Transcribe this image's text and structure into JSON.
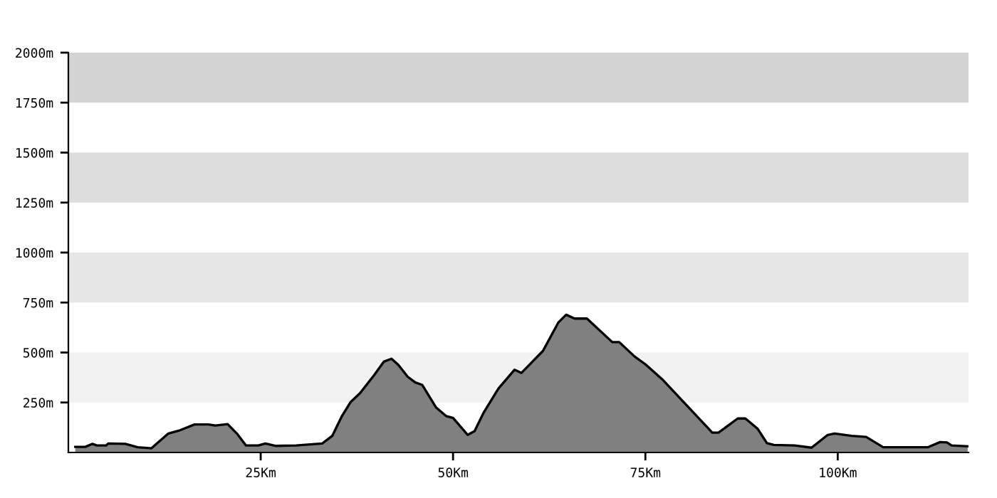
{
  "chart_data": {
    "type": "area",
    "x": [
      0.9,
      2.2,
      3.1,
      3.7,
      4.9,
      5.2,
      7.4,
      9.0,
      10.8,
      13.0,
      14.5,
      16.4,
      18.2,
      19.1,
      20.7,
      21.9,
      23.1,
      24.7,
      25.6,
      26.9,
      29.6,
      33.0,
      34.3,
      35.5,
      36.7,
      37.9,
      39.8,
      41.0,
      42.0,
      42.9,
      44.1,
      45.1,
      46.0,
      47.8,
      49.1,
      50.0,
      51.9,
      52.8,
      54.0,
      55.9,
      58.0,
      58.9,
      61.7,
      63.7,
      64.7,
      65.8,
      67.4,
      70.7,
      71.6,
      73.6,
      75.1,
      77.3,
      83.7,
      84.5,
      87.0,
      88.0,
      89.6,
      90.8,
      91.7,
      94.4,
      96.6,
      98.7,
      99.6,
      101.8,
      103.7,
      105.9,
      111.7,
      113.3,
      114.2,
      114.8,
      116.9
    ],
    "series": [
      {
        "color": "#808080",
        "values": [
          28,
          28,
          43,
          35,
          35,
          45,
          43,
          26,
          21,
          95,
          111,
          140,
          140,
          135,
          142,
          95,
          35,
          35,
          45,
          33,
          35,
          45,
          83,
          178,
          253,
          296,
          390,
          454,
          469,
          438,
          379,
          350,
          338,
          225,
          182,
          173,
          88,
          107,
          201,
          320,
          414,
          398,
          509,
          651,
          689,
          670,
          670,
          552,
          552,
          480,
          438,
          362,
          99,
          99,
          170,
          170,
          118,
          47,
          38,
          35,
          24,
          88,
          95,
          83,
          78,
          26,
          26,
          52,
          50,
          35,
          31
        ]
      }
    ],
    "xlim": [
      0,
      117
    ],
    "ylim": [
      0,
      2000
    ],
    "xticks": [
      {
        "value": 25,
        "label": "25Km"
      },
      {
        "value": 50,
        "label": "50Km"
      },
      {
        "value": 75,
        "label": "75Km"
      },
      {
        "value": 100,
        "label": "100Km"
      }
    ],
    "yticks": [
      {
        "value": 250,
        "label": "250m"
      },
      {
        "value": 500,
        "label": "500m"
      },
      {
        "value": 750,
        "label": "750m"
      },
      {
        "value": 1000,
        "label": "1000m"
      },
      {
        "value": 1250,
        "label": "1250m"
      },
      {
        "value": 1500,
        "label": "1500m"
      },
      {
        "value": 1750,
        "label": "1750m"
      },
      {
        "value": 2000,
        "label": "2000m"
      }
    ],
    "bands": [
      {
        "axis": "y",
        "from": 250,
        "to": 500,
        "color": "#f2f2f2"
      },
      {
        "axis": "y",
        "from": 750,
        "to": 1000,
        "color": "#e6e6e6"
      },
      {
        "axis": "y",
        "from": 1250,
        "to": 1500,
        "color": "#dddddd"
      },
      {
        "axis": "y",
        "from": 1750,
        "to": 2000,
        "color": "#d3d3d3"
      }
    ],
    "grid": false,
    "legend": false
  }
}
